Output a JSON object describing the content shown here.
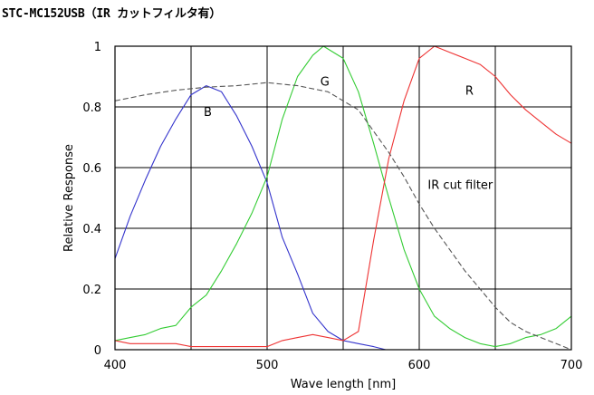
{
  "chart_data": {
    "type": "line",
    "title": "STC-MC152USB（IR カットフィルタ有）",
    "xlabel": "Wave length [nm]",
    "ylabel": "Relative Response",
    "xlim": [
      400,
      700
    ],
    "ylim": [
      0,
      1
    ],
    "x_ticks": [
      400,
      500,
      600,
      700
    ],
    "x_tick_labels": [
      "400",
      "500",
      "600",
      "700"
    ],
    "y_ticks": [
      0,
      0.2,
      0.4,
      0.6,
      0.8,
      1
    ],
    "y_tick_labels": [
      "0",
      "0.2",
      "0.4",
      "0.6",
      "0.8",
      "1"
    ],
    "x_grid": [
      400,
      450,
      500,
      550,
      600,
      650,
      700
    ],
    "grid": true,
    "series": [
      {
        "name": "B",
        "color": "#3333cc",
        "line_style": "solid",
        "points": [
          [
            400,
            0.3
          ],
          [
            410,
            0.44
          ],
          [
            420,
            0.56
          ],
          [
            430,
            0.67
          ],
          [
            440,
            0.76
          ],
          [
            450,
            0.84
          ],
          [
            460,
            0.87
          ],
          [
            470,
            0.85
          ],
          [
            480,
            0.77
          ],
          [
            490,
            0.67
          ],
          [
            500,
            0.55
          ],
          [
            510,
            0.37
          ],
          [
            520,
            0.25
          ],
          [
            530,
            0.12
          ],
          [
            540,
            0.06
          ],
          [
            550,
            0.03
          ],
          [
            560,
            0.02
          ],
          [
            570,
            0.01
          ],
          [
            578,
            0.0
          ]
        ]
      },
      {
        "name": "G",
        "color": "#33cc33",
        "line_style": "solid",
        "points": [
          [
            400,
            0.03
          ],
          [
            410,
            0.04
          ],
          [
            420,
            0.05
          ],
          [
            430,
            0.07
          ],
          [
            440,
            0.08
          ],
          [
            450,
            0.14
          ],
          [
            460,
            0.18
          ],
          [
            470,
            0.26
          ],
          [
            480,
            0.35
          ],
          [
            490,
            0.45
          ],
          [
            500,
            0.57
          ],
          [
            510,
            0.76
          ],
          [
            520,
            0.9
          ],
          [
            530,
            0.97
          ],
          [
            537,
            1.0
          ],
          [
            550,
            0.96
          ],
          [
            560,
            0.85
          ],
          [
            570,
            0.68
          ],
          [
            580,
            0.5
          ],
          [
            590,
            0.33
          ],
          [
            600,
            0.2
          ],
          [
            610,
            0.11
          ],
          [
            620,
            0.07
          ],
          [
            630,
            0.04
          ],
          [
            640,
            0.02
          ],
          [
            650,
            0.01
          ],
          [
            660,
            0.02
          ],
          [
            670,
            0.04
          ],
          [
            680,
            0.05
          ],
          [
            690,
            0.07
          ],
          [
            700,
            0.11
          ]
        ]
      },
      {
        "name": "R",
        "color": "#ee3333",
        "line_style": "solid",
        "points": [
          [
            400,
            0.03
          ],
          [
            410,
            0.02
          ],
          [
            420,
            0.02
          ],
          [
            430,
            0.02
          ],
          [
            440,
            0.02
          ],
          [
            450,
            0.01
          ],
          [
            460,
            0.01
          ],
          [
            470,
            0.01
          ],
          [
            480,
            0.01
          ],
          [
            490,
            0.01
          ],
          [
            500,
            0.01
          ],
          [
            510,
            0.03
          ],
          [
            520,
            0.04
          ],
          [
            530,
            0.05
          ],
          [
            540,
            0.04
          ],
          [
            550,
            0.03
          ],
          [
            560,
            0.06
          ],
          [
            570,
            0.36
          ],
          [
            580,
            0.63
          ],
          [
            590,
            0.82
          ],
          [
            600,
            0.96
          ],
          [
            610,
            1.0
          ],
          [
            620,
            0.98
          ],
          [
            630,
            0.96
          ],
          [
            640,
            0.94
          ],
          [
            650,
            0.9
          ],
          [
            660,
            0.84
          ],
          [
            670,
            0.79
          ],
          [
            680,
            0.75
          ],
          [
            690,
            0.71
          ],
          [
            700,
            0.68
          ]
        ]
      },
      {
        "name": "IR cut filter",
        "color": "#555555",
        "line_style": "dashed",
        "points": [
          [
            400,
            0.82
          ],
          [
            420,
            0.84
          ],
          [
            440,
            0.855
          ],
          [
            460,
            0.865
          ],
          [
            480,
            0.87
          ],
          [
            500,
            0.88
          ],
          [
            520,
            0.87
          ],
          [
            540,
            0.85
          ],
          [
            550,
            0.82
          ],
          [
            560,
            0.79
          ],
          [
            570,
            0.72
          ],
          [
            580,
            0.65
          ],
          [
            590,
            0.57
          ],
          [
            600,
            0.48
          ],
          [
            610,
            0.4
          ],
          [
            620,
            0.33
          ],
          [
            630,
            0.26
          ],
          [
            640,
            0.2
          ],
          [
            650,
            0.14
          ],
          [
            660,
            0.09
          ],
          [
            670,
            0.06
          ],
          [
            680,
            0.04
          ],
          [
            690,
            0.02
          ],
          [
            700,
            0.0
          ]
        ]
      }
    ],
    "annotations": [
      {
        "text": "B",
        "x": 461,
        "y": 0.77,
        "series": "B"
      },
      {
        "text": "G",
        "x": 538,
        "y": 0.87,
        "series": "G"
      },
      {
        "text": "R",
        "x": 633,
        "y": 0.84,
        "series": "R"
      },
      {
        "text": "IR cut filter",
        "x": 627,
        "y": 0.53,
        "series": "IR cut filter"
      }
    ]
  }
}
